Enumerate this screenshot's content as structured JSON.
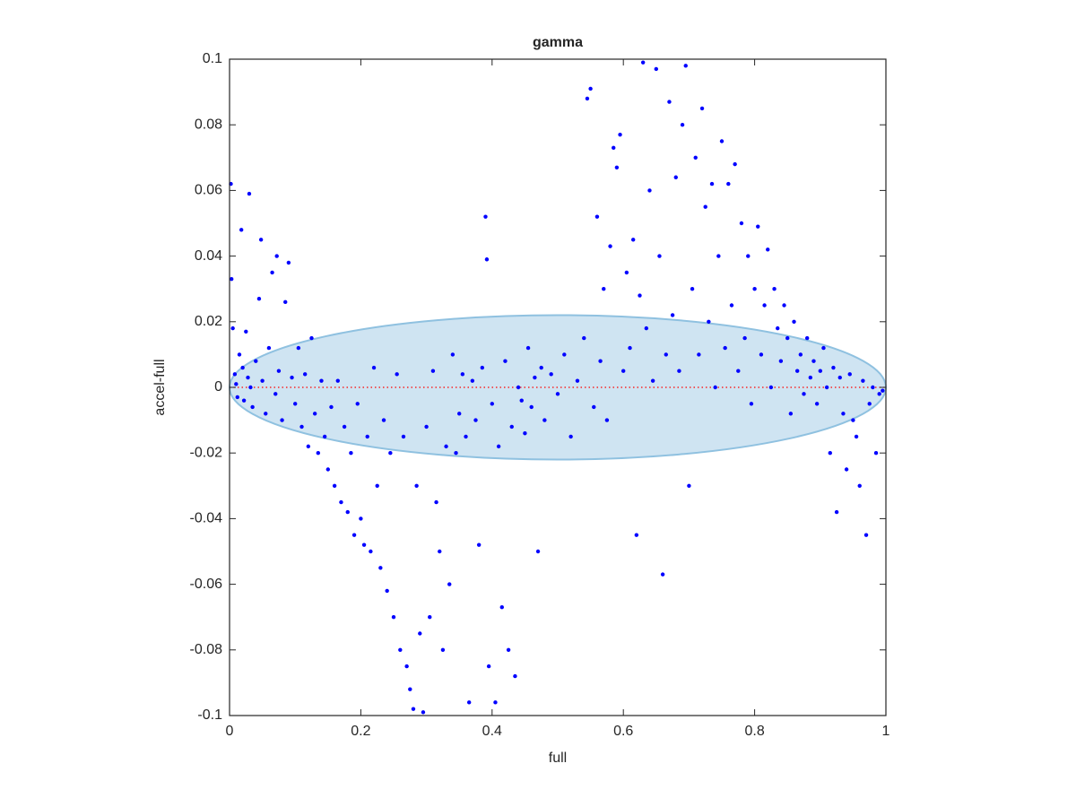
{
  "chart_data": {
    "type": "scatter",
    "title": "gamma",
    "x_label": "full",
    "y_label": "accel-full",
    "color": "#0000ff",
    "xlim": [
      0,
      1
    ],
    "xticks": [
      0,
      0.2,
      0.4,
      0.6,
      0.8,
      1
    ],
    "ylim": [
      -0.1,
      0.1
    ],
    "yticks": [
      -0.1,
      -0.08,
      -0.06,
      -0.04,
      -0.02,
      0,
      0.02,
      0.04,
      0.06,
      0.08,
      0.1
    ],
    "ellipse": {
      "center_x": 0.5,
      "center_y": 0,
      "radius_x": 0.5,
      "radius_y": 0.022,
      "color": "#cfe4f2",
      "edge_color": "#8fc1e0"
    },
    "reference_line": {
      "y": 0,
      "color": "#ff0000"
    },
    "x": [
      0.002,
      0.003,
      0.005,
      0.008,
      0.01,
      0.012,
      0.015,
      0.018,
      0.02,
      0.022,
      0.025,
      0.028,
      0.03,
      0.032,
      0.035,
      0.04,
      0.045,
      0.048,
      0.05,
      0.055,
      0.06,
      0.065,
      0.07,
      0.072,
      0.075,
      0.08,
      0.085,
      0.09,
      0.095,
      0.1,
      0.105,
      0.11,
      0.115,
      0.12,
      0.125,
      0.13,
      0.135,
      0.14,
      0.145,
      0.15,
      0.155,
      0.16,
      0.165,
      0.17,
      0.175,
      0.18,
      0.185,
      0.19,
      0.195,
      0.2,
      0.205,
      0.21,
      0.215,
      0.22,
      0.225,
      0.23,
      0.235,
      0.24,
      0.245,
      0.25,
      0.255,
      0.26,
      0.265,
      0.27,
      0.275,
      0.28,
      0.285,
      0.29,
      0.295,
      0.3,
      0.305,
      0.31,
      0.315,
      0.32,
      0.325,
      0.33,
      0.335,
      0.34,
      0.345,
      0.35,
      0.355,
      0.36,
      0.365,
      0.37,
      0.375,
      0.38,
      0.385,
      0.39,
      0.392,
      0.395,
      0.4,
      0.405,
      0.41,
      0.415,
      0.42,
      0.425,
      0.43,
      0.435,
      0.44,
      0.445,
      0.45,
      0.455,
      0.46,
      0.465,
      0.47,
      0.475,
      0.48,
      0.49,
      0.5,
      0.51,
      0.52,
      0.53,
      0.54,
      0.545,
      0.55,
      0.555,
      0.56,
      0.565,
      0.57,
      0.575,
      0.58,
      0.585,
      0.59,
      0.595,
      0.6,
      0.605,
      0.61,
      0.615,
      0.62,
      0.625,
      0.63,
      0.635,
      0.64,
      0.645,
      0.65,
      0.655,
      0.66,
      0.665,
      0.67,
      0.675,
      0.68,
      0.685,
      0.69,
      0.695,
      0.7,
      0.705,
      0.71,
      0.715,
      0.72,
      0.725,
      0.73,
      0.735,
      0.74,
      0.745,
      0.75,
      0.755,
      0.76,
      0.765,
      0.77,
      0.775,
      0.78,
      0.785,
      0.79,
      0.795,
      0.8,
      0.805,
      0.81,
      0.815,
      0.82,
      0.825,
      0.83,
      0.835,
      0.84,
      0.845,
      0.85,
      0.855,
      0.86,
      0.865,
      0.87,
      0.875,
      0.88,
      0.885,
      0.89,
      0.895,
      0.9,
      0.905,
      0.91,
      0.915,
      0.92,
      0.925,
      0.93,
      0.935,
      0.94,
      0.945,
      0.95,
      0.955,
      0.96,
      0.965,
      0.97,
      0.975,
      0.98,
      0.985,
      0.99,
      0.995
    ],
    "values": [
      0.062,
      0.033,
      0.018,
      0.004,
      0.001,
      -0.003,
      0.01,
      0.048,
      0.006,
      -0.004,
      0.017,
      0.003,
      0.059,
      0.0,
      -0.006,
      0.008,
      0.027,
      0.045,
      0.002,
      -0.008,
      0.012,
      0.035,
      -0.002,
      0.04,
      0.005,
      -0.01,
      0.026,
      0.038,
      0.003,
      -0.005,
      0.012,
      -0.012,
      0.004,
      -0.018,
      0.015,
      -0.008,
      -0.02,
      0.002,
      -0.015,
      -0.025,
      -0.006,
      -0.03,
      0.002,
      -0.035,
      -0.012,
      -0.038,
      -0.02,
      -0.045,
      -0.005,
      -0.04,
      -0.048,
      -0.015,
      -0.05,
      0.006,
      -0.03,
      -0.055,
      -0.01,
      -0.062,
      -0.02,
      -0.07,
      0.004,
      -0.08,
      -0.015,
      -0.085,
      -0.092,
      -0.098,
      -0.03,
      -0.075,
      -0.099,
      -0.012,
      -0.07,
      0.005,
      -0.035,
      -0.05,
      -0.08,
      -0.018,
      -0.06,
      0.01,
      -0.02,
      -0.008,
      0.004,
      -0.015,
      -0.096,
      0.002,
      -0.01,
      -0.048,
      0.006,
      0.052,
      0.039,
      -0.085,
      -0.005,
      -0.096,
      -0.018,
      -0.067,
      0.008,
      -0.08,
      -0.012,
      -0.088,
      0.0,
      -0.004,
      -0.014,
      0.012,
      -0.006,
      0.003,
      -0.05,
      0.006,
      -0.01,
      0.004,
      -0.002,
      0.01,
      -0.015,
      0.002,
      0.015,
      0.088,
      0.091,
      -0.006,
      0.052,
      0.008,
      0.03,
      -0.01,
      0.043,
      0.073,
      0.067,
      0.077,
      0.005,
      0.035,
      0.012,
      0.045,
      -0.045,
      0.028,
      0.099,
      0.018,
      0.06,
      0.002,
      0.097,
      0.04,
      -0.057,
      0.01,
      0.087,
      0.022,
      0.064,
      0.005,
      0.08,
      0.098,
      -0.03,
      0.03,
      0.07,
      0.01,
      0.085,
      0.055,
      0.02,
      0.062,
      0.0,
      0.04,
      0.075,
      0.012,
      0.062,
      0.025,
      0.068,
      0.005,
      0.05,
      0.015,
      0.04,
      -0.005,
      0.03,
      0.049,
      0.01,
      0.025,
      0.042,
      0.0,
      0.03,
      0.018,
      0.008,
      0.025,
      0.015,
      -0.008,
      0.02,
      0.005,
      0.01,
      -0.002,
      0.015,
      0.003,
      0.008,
      -0.005,
      0.005,
      0.012,
      0.0,
      -0.02,
      0.006,
      -0.038,
      0.003,
      -0.008,
      -0.025,
      0.004,
      -0.01,
      -0.015,
      -0.03,
      0.002,
      -0.045,
      -0.005,
      0.0,
      -0.02,
      -0.002,
      -0.001
    ]
  }
}
